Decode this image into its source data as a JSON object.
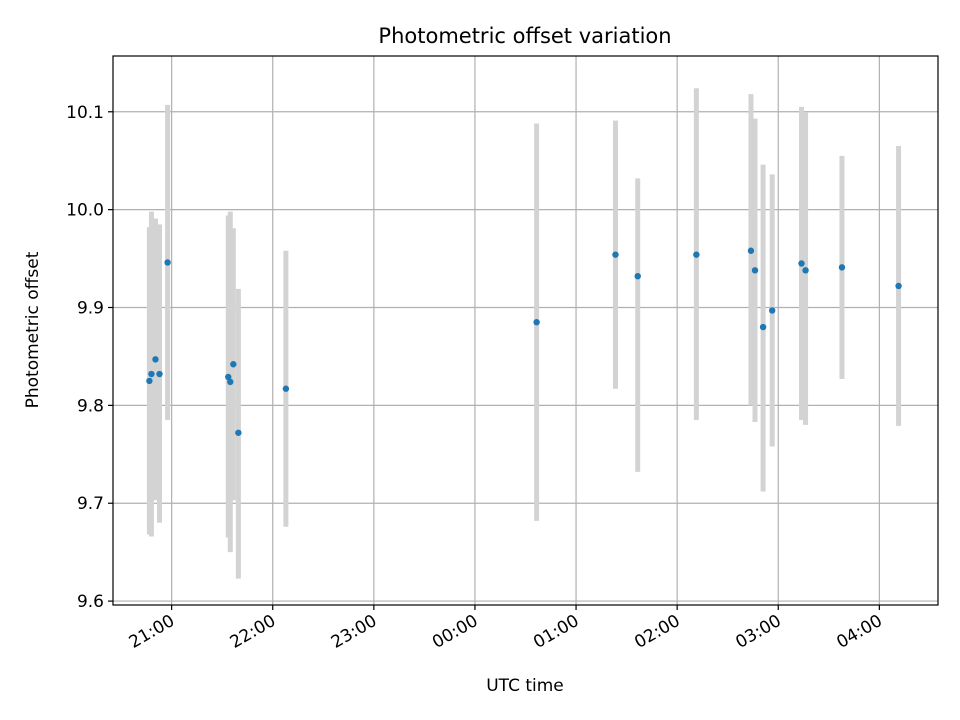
{
  "chart_data": {
    "type": "scatter",
    "title": "Photometric offset variation",
    "xlabel": "UTC time",
    "ylabel": "Photometric offset",
    "x_unit": "hours (UTC clock, continuing past midnight)",
    "xlim": [
      20.42,
      28.58
    ],
    "ylim": [
      9.596,
      10.157
    ],
    "grid": true,
    "colors": {
      "point": "#1f77b4",
      "errorbar": "#d3d3d3"
    },
    "xticks": [
      {
        "value": 21,
        "label": "21:00"
      },
      {
        "value": 22,
        "label": "22:00"
      },
      {
        "value": 23,
        "label": "23:00"
      },
      {
        "value": 24,
        "label": "00:00"
      },
      {
        "value": 25,
        "label": "01:00"
      },
      {
        "value": 26,
        "label": "02:00"
      },
      {
        "value": 27,
        "label": "03:00"
      },
      {
        "value": 28,
        "label": "04:00"
      }
    ],
    "yticks": [
      {
        "value": 9.6,
        "label": "9.6"
      },
      {
        "value": 9.7,
        "label": "9.7"
      },
      {
        "value": 9.8,
        "label": "9.8"
      },
      {
        "value": 9.9,
        "label": "9.9"
      },
      {
        "value": 10.0,
        "label": "10.0"
      },
      {
        "value": 10.1,
        "label": "10.1"
      }
    ],
    "points": [
      {
        "x": 20.78,
        "y": 9.825,
        "ylow": 9.668,
        "yhigh": 9.982
      },
      {
        "x": 20.8,
        "y": 9.832,
        "ylow": 9.666,
        "yhigh": 9.998
      },
      {
        "x": 20.84,
        "y": 9.847,
        "ylow": 9.703,
        "yhigh": 9.991
      },
      {
        "x": 20.88,
        "y": 9.832,
        "ylow": 9.68,
        "yhigh": 9.985
      },
      {
        "x": 20.96,
        "y": 9.946,
        "ylow": 9.785,
        "yhigh": 10.107
      },
      {
        "x": 21.56,
        "y": 9.829,
        "ylow": 9.665,
        "yhigh": 9.994
      },
      {
        "x": 21.58,
        "y": 9.824,
        "ylow": 9.65,
        "yhigh": 9.998
      },
      {
        "x": 21.61,
        "y": 9.842,
        "ylow": 9.703,
        "yhigh": 9.981
      },
      {
        "x": 21.66,
        "y": 9.772,
        "ylow": 9.623,
        "yhigh": 9.919
      },
      {
        "x": 22.13,
        "y": 9.817,
        "ylow": 9.676,
        "yhigh": 9.958
      },
      {
        "x": 24.61,
        "y": 9.885,
        "ylow": 9.682,
        "yhigh": 10.088
      },
      {
        "x": 25.39,
        "y": 9.954,
        "ylow": 9.817,
        "yhigh": 10.091
      },
      {
        "x": 25.61,
        "y": 9.932,
        "ylow": 9.732,
        "yhigh": 10.032
      },
      {
        "x": 26.19,
        "y": 9.954,
        "ylow": 9.785,
        "yhigh": 10.124
      },
      {
        "x": 26.73,
        "y": 9.958,
        "ylow": 9.8,
        "yhigh": 10.118
      },
      {
        "x": 26.77,
        "y": 9.938,
        "ylow": 9.783,
        "yhigh": 10.093
      },
      {
        "x": 26.85,
        "y": 9.88,
        "ylow": 9.712,
        "yhigh": 10.046
      },
      {
        "x": 26.94,
        "y": 9.897,
        "ylow": 9.758,
        "yhigh": 10.036
      },
      {
        "x": 27.23,
        "y": 9.945,
        "ylow": 9.785,
        "yhigh": 10.105
      },
      {
        "x": 27.27,
        "y": 9.938,
        "ylow": 9.78,
        "yhigh": 10.099
      },
      {
        "x": 27.63,
        "y": 9.941,
        "ylow": 9.827,
        "yhigh": 10.055
      },
      {
        "x": 28.19,
        "y": 9.922,
        "ylow": 9.779,
        "yhigh": 10.065
      }
    ]
  }
}
